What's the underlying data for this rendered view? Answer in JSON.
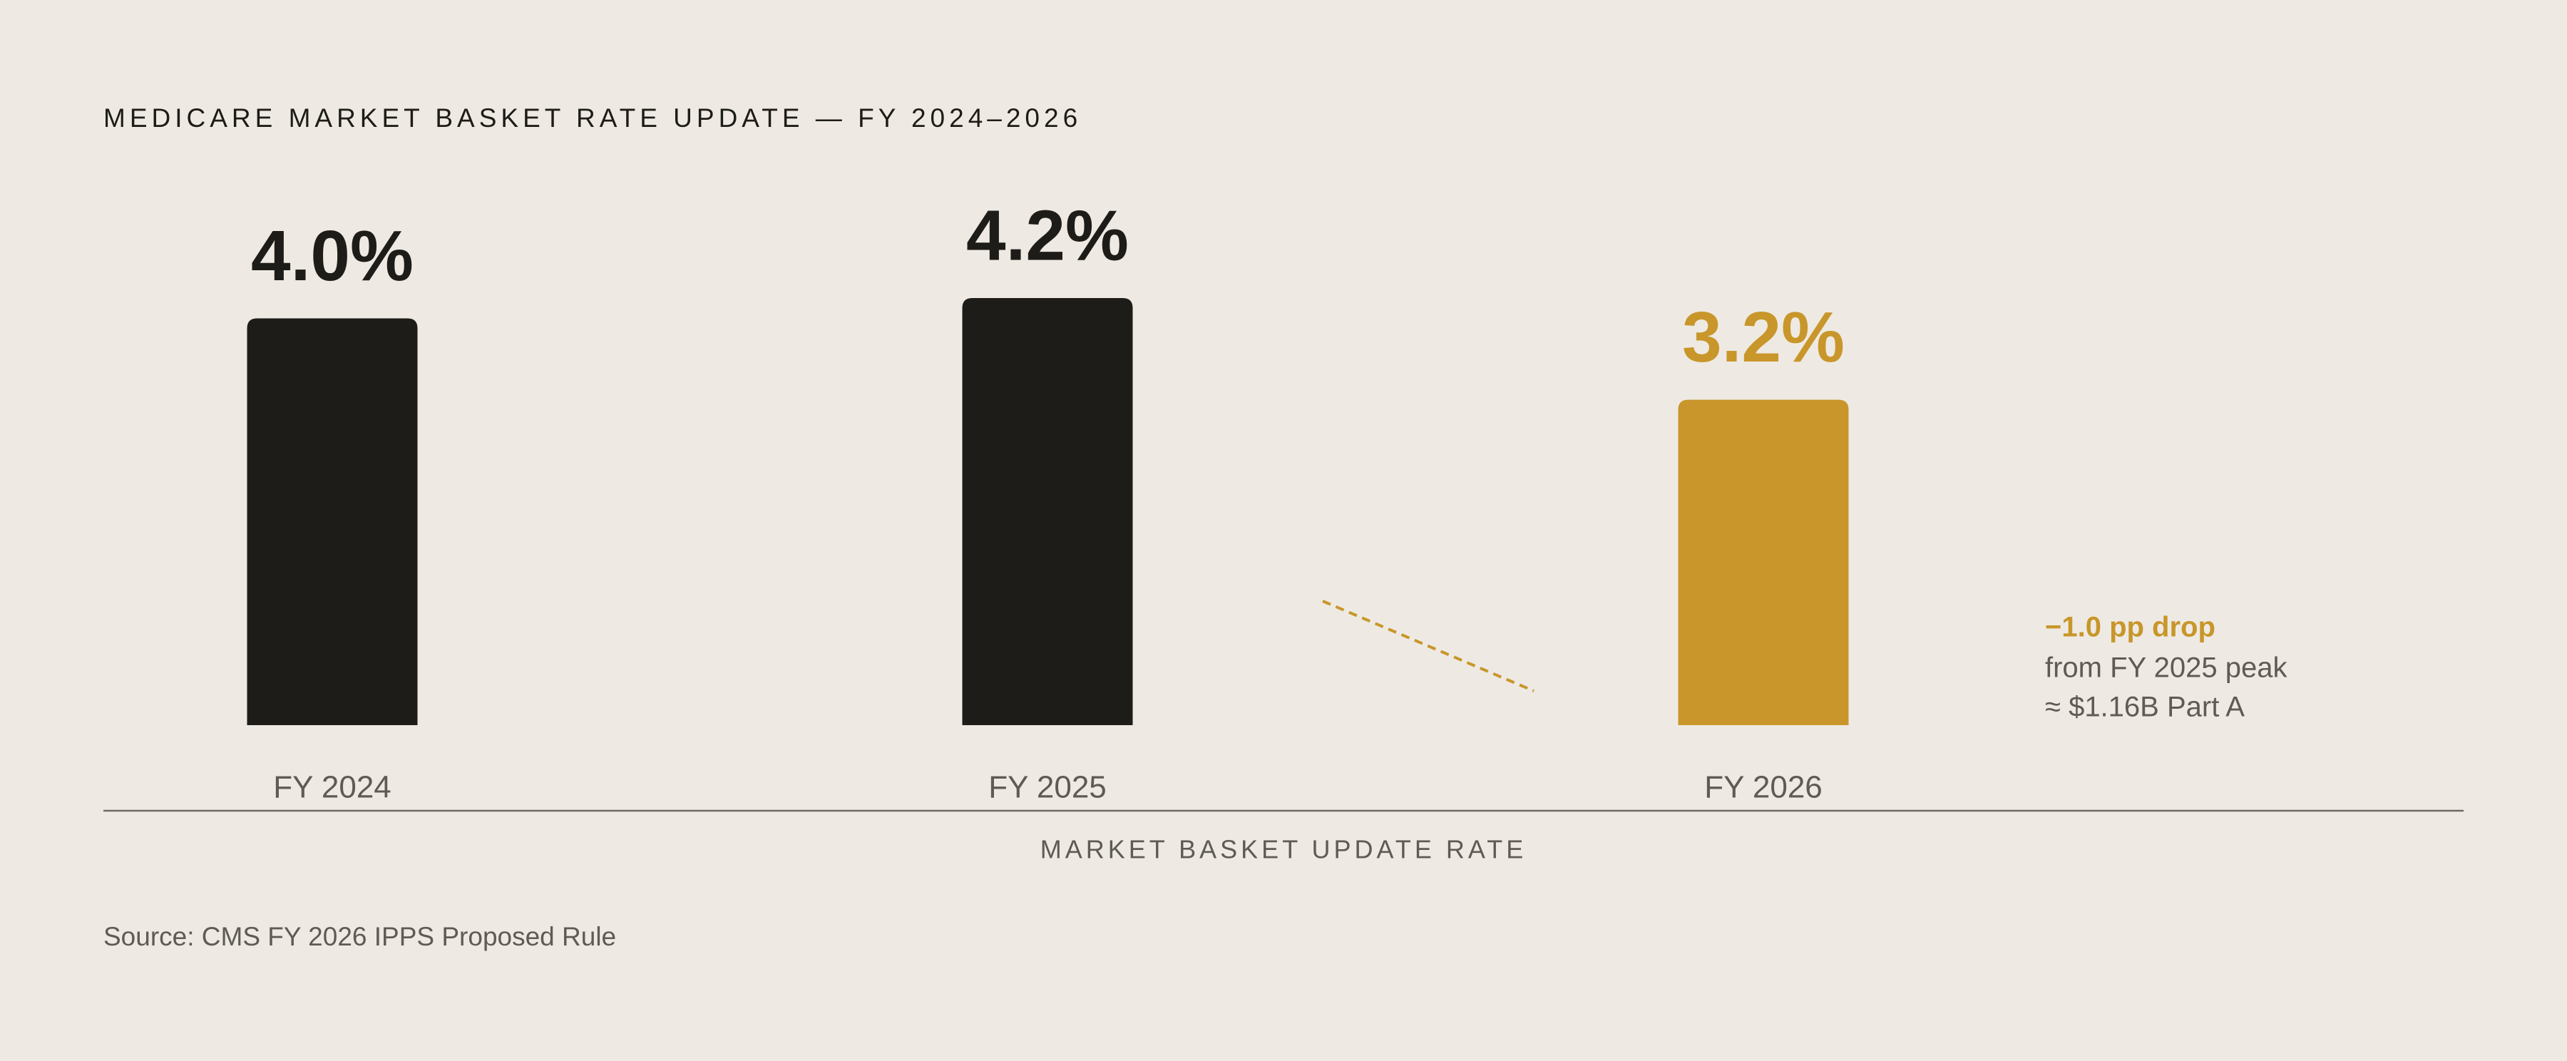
{
  "chart_data": {
    "type": "bar",
    "title": "MEDICARE MARKET BASKET RATE UPDATE — FY 2024–2026",
    "categories": [
      "FY 2024",
      "FY 2025",
      "FY 2026"
    ],
    "values": [
      4.0,
      4.2,
      3.2
    ],
    "value_labels": [
      "4.0%",
      "4.2%",
      "3.2%"
    ],
    "colors": [
      "#1e1c18",
      "#1e1c18",
      "#c8962a"
    ],
    "xlabel": "MARKET BASKET UPDATE RATE",
    "annotation": [
      "−1.0 pp drop",
      "from FY 2025 peak",
      "≈ $1.16B Part A"
    ],
    "annotation_color": "#c8962a",
    "source": "Source: CMS FY 2026 IPPS Proposed Rule"
  }
}
